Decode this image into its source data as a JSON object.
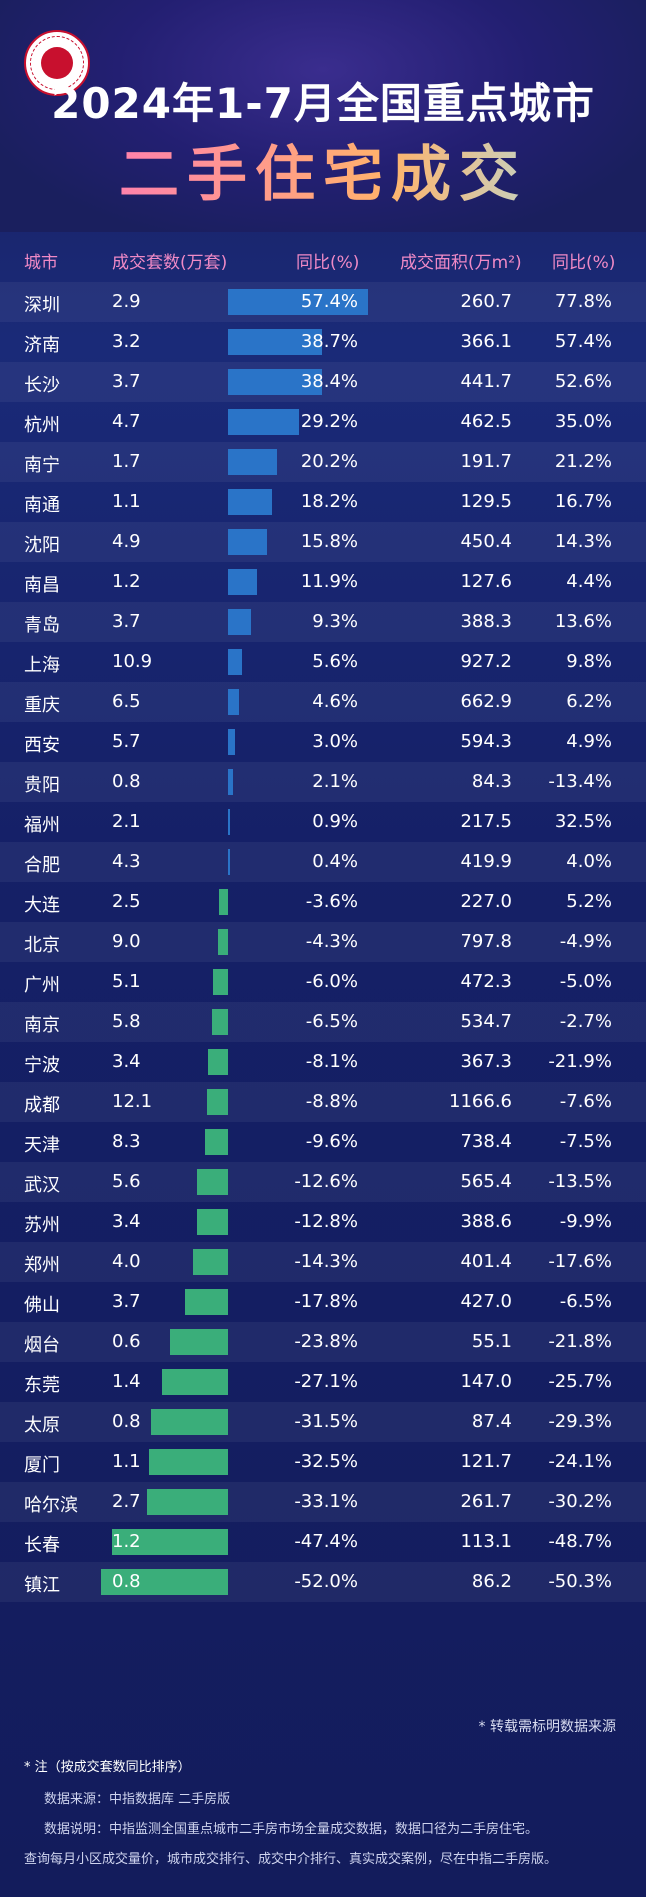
{
  "header": {
    "title_line1": "2024年1-7月全国重点城市",
    "title_line2": "二手住宅成交"
  },
  "colors": {
    "positive_bar": "#2a74c8",
    "negative_bar": "#3aae7a",
    "header_text": "#f08ac6",
    "background": "#131c5c"
  },
  "chart_data": {
    "type": "table",
    "columns": [
      "城市",
      "成交套数(万套)",
      "同比(%)",
      "成交面积(万m²)",
      "同比(%)"
    ],
    "rows": [
      {
        "city": "深圳",
        "volume": "2.9",
        "yoy": "57.4%",
        "area": "260.7",
        "area_yoy": "77.8%"
      },
      {
        "city": "济南",
        "volume": "3.2",
        "yoy": "38.7%",
        "area": "366.1",
        "area_yoy": "57.4%"
      },
      {
        "city": "长沙",
        "volume": "3.7",
        "yoy": "38.4%",
        "area": "441.7",
        "area_yoy": "52.6%"
      },
      {
        "city": "杭州",
        "volume": "4.7",
        "yoy": "29.2%",
        "area": "462.5",
        "area_yoy": "35.0%"
      },
      {
        "city": "南宁",
        "volume": "1.7",
        "yoy": "20.2%",
        "area": "191.7",
        "area_yoy": "21.2%"
      },
      {
        "city": "南通",
        "volume": "1.1",
        "yoy": "18.2%",
        "area": "129.5",
        "area_yoy": "16.7%"
      },
      {
        "city": "沈阳",
        "volume": "4.9",
        "yoy": "15.8%",
        "area": "450.4",
        "area_yoy": "14.3%"
      },
      {
        "city": "南昌",
        "volume": "1.2",
        "yoy": "11.9%",
        "area": "127.6",
        "area_yoy": "4.4%"
      },
      {
        "city": "青岛",
        "volume": "3.7",
        "yoy": "9.3%",
        "area": "388.3",
        "area_yoy": "13.6%"
      },
      {
        "city": "上海",
        "volume": "10.9",
        "yoy": "5.6%",
        "area": "927.2",
        "area_yoy": "9.8%"
      },
      {
        "city": "重庆",
        "volume": "6.5",
        "yoy": "4.6%",
        "area": "662.9",
        "area_yoy": "6.2%"
      },
      {
        "city": "西安",
        "volume": "5.7",
        "yoy": "3.0%",
        "area": "594.3",
        "area_yoy": "4.9%"
      },
      {
        "city": "贵阳",
        "volume": "0.8",
        "yoy": "2.1%",
        "area": "84.3",
        "area_yoy": "-13.4%"
      },
      {
        "city": "福州",
        "volume": "2.1",
        "yoy": "0.9%",
        "area": "217.5",
        "area_yoy": "32.5%"
      },
      {
        "city": "合肥",
        "volume": "4.3",
        "yoy": "0.4%",
        "area": "419.9",
        "area_yoy": "4.0%"
      },
      {
        "city": "大连",
        "volume": "2.5",
        "yoy": "-3.6%",
        "area": "227.0",
        "area_yoy": "5.2%"
      },
      {
        "city": "北京",
        "volume": "9.0",
        "yoy": "-4.3%",
        "area": "797.8",
        "area_yoy": "-4.9%"
      },
      {
        "city": "广州",
        "volume": "5.1",
        "yoy": "-6.0%",
        "area": "472.3",
        "area_yoy": "-5.0%"
      },
      {
        "city": "南京",
        "volume": "5.8",
        "yoy": "-6.5%",
        "area": "534.7",
        "area_yoy": "-2.7%"
      },
      {
        "city": "宁波",
        "volume": "3.4",
        "yoy": "-8.1%",
        "area": "367.3",
        "area_yoy": "-21.9%"
      },
      {
        "city": "成都",
        "volume": "12.1",
        "yoy": "-8.8%",
        "area": "1166.6",
        "area_yoy": "-7.6%"
      },
      {
        "city": "天津",
        "volume": "8.3",
        "yoy": "-9.6%",
        "area": "738.4",
        "area_yoy": "-7.5%"
      },
      {
        "city": "武汉",
        "volume": "5.6",
        "yoy": "-12.6%",
        "area": "565.4",
        "area_yoy": "-13.5%"
      },
      {
        "city": "苏州",
        "volume": "3.4",
        "yoy": "-12.8%",
        "area": "388.6",
        "area_yoy": "-9.9%"
      },
      {
        "city": "郑州",
        "volume": "4.0",
        "yoy": "-14.3%",
        "area": "401.4",
        "area_yoy": "-17.6%"
      },
      {
        "city": "佛山",
        "volume": "3.7",
        "yoy": "-17.8%",
        "area": "427.0",
        "area_yoy": "-6.5%"
      },
      {
        "city": "烟台",
        "volume": "0.6",
        "yoy": "-23.8%",
        "area": "55.1",
        "area_yoy": "-21.8%"
      },
      {
        "city": "东莞",
        "volume": "1.4",
        "yoy": "-27.1%",
        "area": "147.0",
        "area_yoy": "-25.7%"
      },
      {
        "city": "太原",
        "volume": "0.8",
        "yoy": "-31.5%",
        "area": "87.4",
        "area_yoy": "-29.3%"
      },
      {
        "city": "厦门",
        "volume": "1.1",
        "yoy": "-32.5%",
        "area": "121.7",
        "area_yoy": "-24.1%"
      },
      {
        "city": "哈尔滨",
        "volume": "2.7",
        "yoy": "-33.1%",
        "area": "261.7",
        "area_yoy": "-30.2%"
      },
      {
        "city": "长春",
        "volume": "1.2",
        "yoy": "-47.4%",
        "area": "113.1",
        "area_yoy": "-48.7%"
      },
      {
        "city": "镇江",
        "volume": "0.8",
        "yoy": "-52.0%",
        "area": "86.2",
        "area_yoy": "-50.3%"
      }
    ],
    "bar_series": {
      "name": "同比(%)",
      "values": [
        57.4,
        38.7,
        38.4,
        29.2,
        20.2,
        18.2,
        15.8,
        11.9,
        9.3,
        5.6,
        4.6,
        3.0,
        2.1,
        0.9,
        0.4,
        -3.6,
        -4.3,
        -6.0,
        -6.5,
        -8.1,
        -8.8,
        -9.6,
        -12.6,
        -12.8,
        -14.3,
        -17.8,
        -23.8,
        -27.1,
        -31.5,
        -32.5,
        -33.1,
        -47.4,
        -52.0
      ]
    }
  },
  "notes": {
    "reprint": "* 转载需标明数据来源",
    "note_title": "* 注（按成交套数同比排序）",
    "source": "数据来源：中指数据库 二手房版",
    "explain": "数据说明：中指监测全国重点城市二手房市场全量成交数据，数据口径为二手房住宅。",
    "query": "查询每月小区成交量价，城市成交排行、成交中介排行、真实成交案例，尽在中指二手房版。"
  }
}
